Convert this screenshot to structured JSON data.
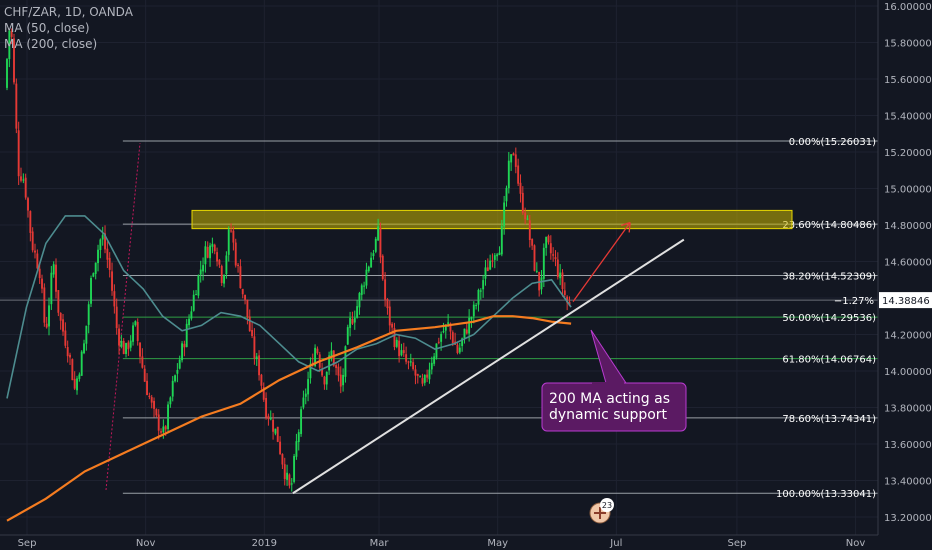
{
  "legend": {
    "symbol": "CHF/ZAR, 1D, OANDA",
    "ma50": "MA (50, close)",
    "ma200": "MA (200, close)"
  },
  "colors": {
    "background": "#131722",
    "bull": "#26a69a",
    "bull_candle": "#1fd655",
    "bear": "#e53935",
    "ma50": "#4d8c8f",
    "ma200": "#f57c20",
    "fib_gray": "#9aa0a6",
    "fib_green": "#2f9e44",
    "zone": "#c8b400",
    "annotation_bg": "#5b1a63",
    "annotation_border": "#b83bd0",
    "trendline": "#e0e0e0",
    "arrow": "#e53935"
  },
  "chart_data": {
    "type": "candlestick",
    "x_labels": [
      {
        "label": "Sep",
        "day": 0
      },
      {
        "label": "Nov",
        "day": 61
      },
      {
        "label": "2019",
        "day": 122
      },
      {
        "label": "Mar",
        "day": 181
      },
      {
        "label": "May",
        "day": 242
      },
      {
        "label": "Jul",
        "day": 303
      },
      {
        "label": "Sep",
        "day": 365
      },
      {
        "label": "Nov",
        "day": 426
      }
    ],
    "y_ticks": [
      "13.20000",
      "13.40000",
      "13.60000",
      "13.80000",
      "14.00000",
      "14.20000",
      "14.40000",
      "14.60000",
      "14.80000",
      "15.00000",
      "15.20000",
      "15.40000",
      "15.60000",
      "15.80000",
      "16.00000"
    ],
    "ylim": [
      13.18,
      16.02
    ],
    "price_path": [
      [
        0,
        15.55
      ],
      [
        3,
        15.95
      ],
      [
        7,
        15.1
      ],
      [
        10,
        15.05
      ],
      [
        14,
        14.7
      ],
      [
        18,
        14.55
      ],
      [
        21,
        14.2
      ],
      [
        25,
        14.6
      ],
      [
        28,
        14.3
      ],
      [
        33,
        14.1
      ],
      [
        36,
        13.9
      ],
      [
        41,
        14.15
      ],
      [
        45,
        14.55
      ],
      [
        50,
        14.75
      ],
      [
        54,
        14.55
      ],
      [
        58,
        14.2
      ],
      [
        62,
        14.1
      ],
      [
        67,
        14.25
      ],
      [
        72,
        13.95
      ],
      [
        77,
        13.75
      ],
      [
        82,
        13.65
      ],
      [
        86,
        13.9
      ],
      [
        92,
        14.15
      ],
      [
        98,
        14.45
      ],
      [
        103,
        14.65
      ],
      [
        108,
        14.7
      ],
      [
        112,
        14.5
      ],
      [
        116,
        14.8
      ],
      [
        119,
        14.6
      ],
      [
        124,
        14.35
      ],
      [
        128,
        14.1
      ],
      [
        131,
        14.0
      ],
      [
        134,
        13.8
      ],
      [
        140,
        13.65
      ],
      [
        144,
        13.45
      ],
      [
        147,
        13.33
      ],
      [
        150,
        13.6
      ],
      [
        154,
        13.85
      ],
      [
        157,
        14.0
      ],
      [
        160,
        14.15
      ],
      [
        164,
        13.95
      ],
      [
        168,
        14.1
      ],
      [
        173,
        13.9
      ],
      [
        177,
        14.25
      ],
      [
        181,
        14.35
      ],
      [
        186,
        14.55
      ],
      [
        192,
        14.75
      ],
      [
        196,
        14.35
      ],
      [
        201,
        14.15
      ],
      [
        206,
        14.05
      ],
      [
        210,
        14.0
      ],
      [
        215,
        13.9
      ],
      [
        219,
        14.05
      ],
      [
        224,
        14.2
      ],
      [
        228,
        14.25
      ],
      [
        233,
        14.1
      ],
      [
        238,
        14.25
      ],
      [
        242,
        14.35
      ],
      [
        246,
        14.5
      ],
      [
        251,
        14.65
      ],
      [
        255,
        14.7
      ],
      [
        259,
        15.1
      ],
      [
        262,
        15.22
      ],
      [
        265,
        14.95
      ],
      [
        268,
        14.85
      ],
      [
        272,
        14.6
      ],
      [
        275,
        14.45
      ],
      [
        278,
        14.7
      ],
      [
        283,
        14.6
      ],
      [
        287,
        14.45
      ],
      [
        290,
        14.35
      ]
    ],
    "ma50_path": [
      [
        0,
        13.85
      ],
      [
        10,
        14.35
      ],
      [
        20,
        14.7
      ],
      [
        30,
        14.85
      ],
      [
        40,
        14.85
      ],
      [
        50,
        14.75
      ],
      [
        60,
        14.55
      ],
      [
        70,
        14.45
      ],
      [
        80,
        14.3
      ],
      [
        90,
        14.22
      ],
      [
        100,
        14.25
      ],
      [
        110,
        14.32
      ],
      [
        120,
        14.3
      ],
      [
        130,
        14.25
      ],
      [
        140,
        14.15
      ],
      [
        150,
        14.05
      ],
      [
        160,
        14.0
      ],
      [
        170,
        14.05
      ],
      [
        180,
        14.12
      ],
      [
        190,
        14.15
      ],
      [
        200,
        14.2
      ],
      [
        210,
        14.18
      ],
      [
        220,
        14.12
      ],
      [
        230,
        14.15
      ],
      [
        240,
        14.2
      ],
      [
        250,
        14.3
      ],
      [
        260,
        14.4
      ],
      [
        270,
        14.48
      ],
      [
        280,
        14.5
      ],
      [
        290,
        14.35
      ]
    ],
    "ma200_path": [
      [
        0,
        13.18
      ],
      [
        20,
        13.3
      ],
      [
        40,
        13.45
      ],
      [
        60,
        13.55
      ],
      [
        80,
        13.65
      ],
      [
        100,
        13.75
      ],
      [
        120,
        13.82
      ],
      [
        140,
        13.95
      ],
      [
        160,
        14.05
      ],
      [
        180,
        14.13
      ],
      [
        200,
        14.22
      ],
      [
        220,
        14.24
      ],
      [
        240,
        14.27
      ],
      [
        250,
        14.3
      ],
      [
        260,
        14.3
      ],
      [
        270,
        14.29
      ],
      [
        280,
        14.27
      ],
      [
        290,
        14.26
      ]
    ],
    "fib_levels": [
      {
        "label": "0.00%(15.26031)",
        "value": 15.26031,
        "color": "gray"
      },
      {
        "label": "23.60%(14.80486)",
        "value": 14.80486,
        "color": "gray"
      },
      {
        "label": "38.20%(14.52309)",
        "value": 14.52309,
        "color": "gray"
      },
      {
        "label": "50.00%(14.29536)",
        "value": 14.29536,
        "color": "green"
      },
      {
        "label": "61.80%(14.06764)",
        "value": 14.06764,
        "color": "green"
      },
      {
        "label": "78.60%(13.74341)",
        "value": 13.74341,
        "color": "gray"
      },
      {
        "label": "100.00%(13.33041)",
        "value": 13.33041,
        "color": "gray"
      }
    ],
    "fib_start_day": 75,
    "resistance_zone": {
      "from_day": 135,
      "to_day": 340,
      "low": 14.78,
      "high": 14.88
    },
    "trendline": {
      "from": [
        147,
        13.33
      ],
      "to": [
        348,
        14.72
      ]
    },
    "current_price": "14.38846",
    "change_pct": "−1.27%",
    "current_value": 14.38846,
    "annotation": {
      "line1": "200 MA acting as",
      "line2": "dynamic support"
    },
    "arrow": {
      "from": [
        290,
        14.38
      ],
      "to": [
        306,
        14.77
      ]
    },
    "badge": "23"
  }
}
